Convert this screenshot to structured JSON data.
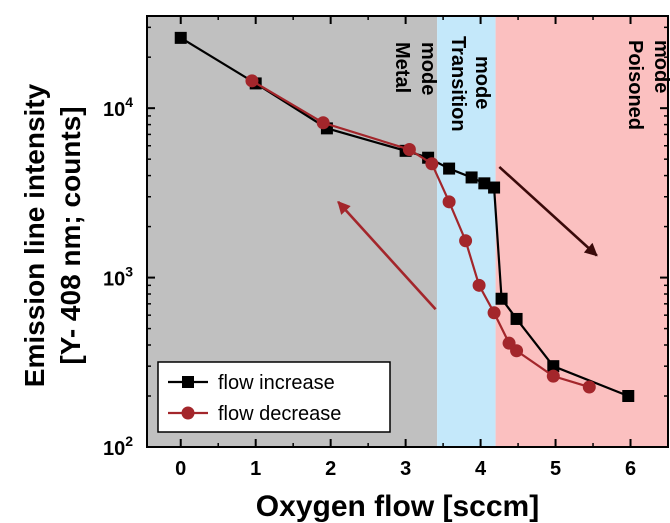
{
  "chart_data": {
    "type": "line",
    "xlabel": "Oxygen flow [sccm]",
    "ylabel_line1": "Emission line intensity",
    "ylabel_line2": "[Y- 408 nm; counts]",
    "xlim": [
      -0.45,
      6.5
    ],
    "ylim": [
      100,
      35000
    ],
    "yscale": "log",
    "x_ticks": [
      0,
      1,
      2,
      3,
      4,
      5,
      6
    ],
    "x_tick_labels": [
      "0",
      "1",
      "2",
      "3",
      "4",
      "5",
      "6"
    ],
    "y_ticks": [
      100,
      1000,
      10000
    ],
    "y_tick_labels": [
      {
        "base": "10",
        "exp": "2"
      },
      {
        "base": "10",
        "exp": "3"
      },
      {
        "base": "10",
        "exp": "4"
      }
    ],
    "regions": [
      {
        "name": "Metal mode",
        "line1": "Metal",
        "line2": "mode",
        "x_start": -0.45,
        "x_end": 3.42,
        "color": "#c0c0c0"
      },
      {
        "name": "Transition mode",
        "line1": "Transition",
        "line2": "mode",
        "x_start": 3.42,
        "x_end": 4.2,
        "color": "#c4e8fa"
      },
      {
        "name": "Poisoned mode",
        "line1": "Poisoned",
        "line2": "mode",
        "x_start": 4.2,
        "x_end": 6.5,
        "color": "#fbc0c0"
      }
    ],
    "series": [
      {
        "name": "flow increase",
        "marker": "square",
        "color": "#000000",
        "points": [
          [
            0,
            26000
          ],
          [
            1,
            14000
          ],
          [
            1.95,
            7600
          ],
          [
            3.0,
            5600
          ],
          [
            3.3,
            5100
          ],
          [
            3.58,
            4400
          ],
          [
            3.88,
            3900
          ],
          [
            4.05,
            3600
          ],
          [
            4.18,
            3400
          ],
          [
            4.28,
            750
          ],
          [
            4.48,
            570
          ],
          [
            4.97,
            300
          ],
          [
            5.97,
            200
          ]
        ]
      },
      {
        "name": "flow decrease",
        "marker": "circle",
        "color": "#a3262b",
        "points": [
          [
            0.95,
            14500
          ],
          [
            1.9,
            8200
          ],
          [
            3.05,
            5700
          ],
          [
            3.35,
            4700
          ],
          [
            3.58,
            2800
          ],
          [
            3.8,
            1650
          ],
          [
            3.98,
            900
          ],
          [
            4.18,
            620
          ],
          [
            4.38,
            410
          ],
          [
            4.48,
            370
          ],
          [
            4.97,
            262
          ],
          [
            5.45,
            226
          ]
        ]
      }
    ],
    "arrows": [
      {
        "color": "#a3262b",
        "from": [
          3.4,
          650
        ],
        "to": [
          2.1,
          2800
        ]
      },
      {
        "color": "#3a0a0a",
        "from": [
          4.25,
          4500
        ],
        "to": [
          5.55,
          1350
        ]
      }
    ],
    "legend": {
      "placement": "bottom-left",
      "entries": [
        "flow increase",
        "flow decrease"
      ]
    }
  }
}
